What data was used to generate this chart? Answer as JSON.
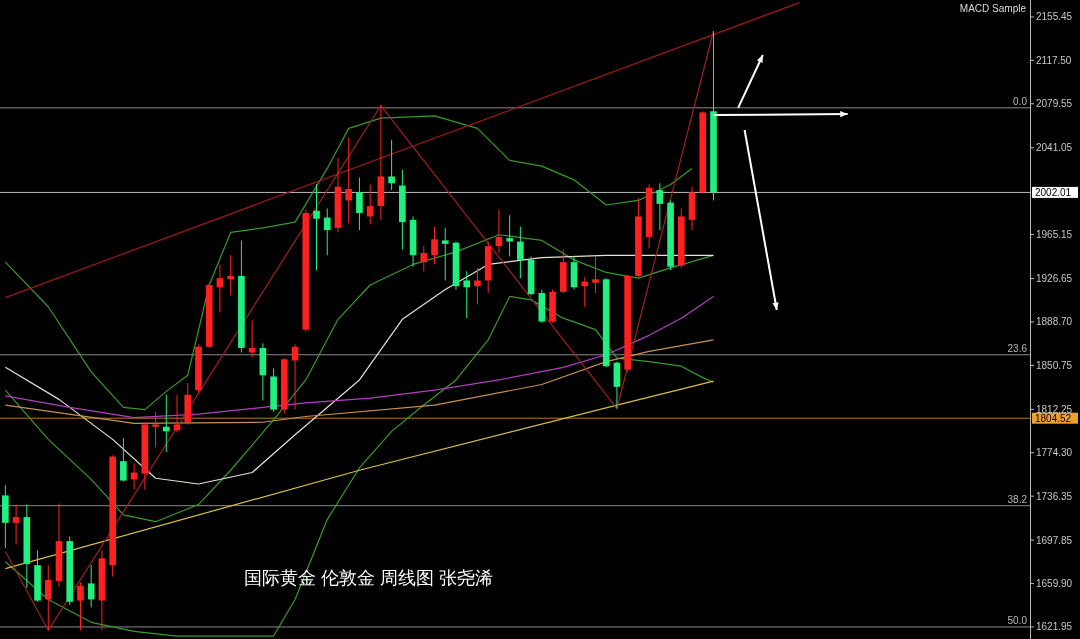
{
  "chart_data": {
    "type": "candlestick",
    "categories": [
      null,
      null,
      null,
      null,
      null,
      null,
      null,
      null,
      null,
      null,
      null,
      null,
      null,
      null,
      null,
      null,
      null,
      null,
      null,
      null,
      null,
      null,
      null,
      null,
      null,
      null,
      null,
      null,
      null,
      null,
      null,
      null,
      null,
      null,
      null,
      null,
      null,
      null,
      null,
      null,
      null,
      null,
      null,
      null,
      null,
      null,
      null,
      null,
      null,
      null,
      null,
      null,
      null,
      null,
      null,
      null,
      null,
      null,
      null,
      null,
      null,
      null,
      null,
      null,
      null,
      null,
      null,
      null,
      null,
      null,
      null,
      null,
      null,
      null,
      null,
      null,
      null,
      null,
      null,
      null,
      null,
      null,
      null,
      null,
      null,
      null,
      null,
      null,
      null,
      null,
      null,
      null,
      null,
      null,
      null,
      null
    ],
    "ohlc": [
      [
        1737,
        1746,
        1691,
        1713
      ],
      [
        1713,
        1729,
        1694,
        1718
      ],
      [
        1718,
        1729,
        1656,
        1677
      ],
      [
        1676,
        1689,
        1644,
        1645
      ],
      [
        1646,
        1676,
        1619,
        1663
      ],
      [
        1662,
        1730,
        1657,
        1697
      ],
      [
        1697,
        1701,
        1641,
        1644
      ],
      [
        1645,
        1661,
        1619,
        1658
      ],
      [
        1660,
        1676,
        1639,
        1646
      ],
      [
        1645,
        1689,
        1619,
        1682
      ],
      [
        1676,
        1772,
        1666,
        1771
      ],
      [
        1767,
        1787,
        1749,
        1750
      ],
      [
        1751,
        1765,
        1742,
        1757
      ],
      [
        1756,
        1801,
        1742,
        1799
      ],
      [
        1797,
        1810,
        1779,
        1799
      ],
      [
        1797,
        1825,
        1775,
        1793
      ],
      [
        1794,
        1825,
        1792,
        1799
      ],
      [
        1801,
        1835,
        1799,
        1825
      ],
      [
        1829,
        1869,
        1827,
        1867
      ],
      [
        1867,
        1923,
        1866,
        1921
      ],
      [
        1919,
        1939,
        1897,
        1927
      ],
      [
        1926,
        1947,
        1912,
        1929
      ],
      [
        1929,
        1960,
        1862,
        1866
      ],
      [
        1862,
        1890,
        1858,
        1866
      ],
      [
        1866,
        1870,
        1820,
        1842
      ],
      [
        1841,
        1848,
        1810,
        1812
      ],
      [
        1812,
        1857,
        1809,
        1856
      ],
      [
        1855,
        1869,
        1812,
        1867
      ],
      [
        1882,
        1987,
        1880,
        1984
      ],
      [
        1986,
        2009,
        1934,
        1979
      ],
      [
        1980,
        1988,
        1947,
        1969
      ],
      [
        1971,
        2032,
        1967,
        2007
      ],
      [
        1995,
        2050,
        1975,
        2005
      ],
      [
        2002,
        2015,
        1969,
        1984
      ],
      [
        1981,
        2009,
        1974,
        1990
      ],
      [
        1990,
        2078,
        1978,
        2016
      ],
      [
        2016,
        2048,
        2004,
        2010
      ],
      [
        2008,
        2022,
        1952,
        1976
      ],
      [
        1978,
        1981,
        1937,
        1947
      ],
      [
        1941,
        1955,
        1933,
        1949
      ],
      [
        1947,
        1972,
        1939,
        1961
      ],
      [
        1960,
        1971,
        1925,
        1957
      ],
      [
        1958,
        1959,
        1917,
        1920
      ],
      [
        1925,
        1933,
        1892,
        1919
      ],
      [
        1920,
        1936,
        1904,
        1925
      ],
      [
        1925,
        1959,
        1914,
        1955
      ],
      [
        1955,
        1987,
        1949,
        1963
      ],
      [
        1962,
        1982,
        1946,
        1959
      ],
      [
        1959,
        1972,
        1927,
        1943
      ],
      [
        1943,
        1946,
        1912,
        1913
      ],
      [
        1914,
        1917,
        1888,
        1889
      ],
      [
        1889,
        1917,
        1888,
        1915
      ],
      [
        1915,
        1952,
        1914,
        1941
      ],
      [
        1941,
        1946,
        1917,
        1919
      ],
      [
        1920,
        1928,
        1902,
        1924
      ],
      [
        1923,
        1946,
        1914,
        1926
      ],
      [
        1926,
        1927,
        1849,
        1850
      ],
      [
        1853,
        1854,
        1813,
        1832
      ],
      [
        1847,
        1930,
        1845,
        1929
      ],
      [
        1929,
        1997,
        1928,
        1981
      ],
      [
        1963,
        2009,
        1953,
        2006
      ],
      [
        2004,
        2010,
        1969,
        1992
      ],
      [
        1993,
        1995,
        1934,
        1937
      ],
      [
        1938,
        1988,
        1936,
        1981
      ],
      [
        1978,
        2007,
        1969,
        2002
      ],
      [
        2002,
        2073,
        2001,
        2072
      ],
      [
        2073,
        2143,
        1995,
        2002
      ],
      null,
      null,
      null,
      null,
      null,
      null,
      null,
      null,
      null,
      null,
      null,
      null,
      null,
      null,
      null,
      null,
      null,
      null,
      null,
      null,
      null,
      null,
      null,
      null,
      null,
      null,
      null,
      null,
      null
    ],
    "colors": [
      "#20f080",
      "#ff2020",
      "#20f080",
      "#20f080",
      "#ff2020",
      "#ff2020",
      "#20f080",
      "#ff2020",
      "#20f080",
      "#ff2020",
      "#ff2020",
      "#20f080",
      "#ff2020",
      "#ff2020",
      "#ff2020",
      "#20f080",
      "#ff2020",
      "#ff2020",
      "#ff2020",
      "#ff2020",
      "#ff2020",
      "#ff2020",
      "#20f080",
      "#ff2020",
      "#20f080",
      "#20f080",
      "#ff2020",
      "#ff2020",
      "#ff2020",
      "#20f080",
      "#20f080",
      "#ff2020",
      "#ff2020",
      "#20f080",
      "#ff2020",
      "#ff2020",
      "#20f080",
      "#20f080",
      "#20f080",
      "#ff2020",
      "#ff2020",
      "#20f080",
      "#20f080",
      "#20f080",
      "#ff2020",
      "#ff2020",
      "#ff2020",
      "#20f080",
      "#20f080",
      "#20f080",
      "#20f080",
      "#ff2020",
      "#ff2020",
      "#20f080",
      "#ff2020",
      "#ff2020",
      "#20f080",
      "#20f080",
      "#ff2020",
      "#ff2020",
      "#ff2020",
      "#20f080",
      "#20f080",
      "#ff2020",
      "#ff2020",
      "#ff2020",
      "#20f080",
      null,
      null,
      null,
      null,
      null,
      null,
      null,
      null,
      null,
      null,
      null,
      null,
      null,
      null,
      null,
      null,
      null,
      null,
      null,
      null,
      null,
      null,
      null,
      null,
      null,
      null,
      null,
      null,
      null
    ],
    "series": [
      {
        "type": "line",
        "color": "#3a9a2a",
        "values": [
          1941,
          null,
          null,
          null,
          1902,
          null,
          null,
          null,
          1845,
          null,
          null,
          1814,
          null,
          1812,
          null,
          1828,
          null,
          1842,
          null,
          1921,
          null,
          1967,
          null,
          null,
          1971,
          null,
          null,
          1976,
          null,
          null,
          2023,
          null,
          2058,
          null,
          null,
          2067,
          null,
          null,
          null,
          null,
          2069,
          null,
          null,
          null,
          2058,
          null,
          null,
          2030,
          null,
          null,
          2025,
          null,
          null,
          2013,
          null,
          null,
          1991,
          null,
          null,
          1995,
          null,
          null,
          2009,
          null,
          2023,
          null,
          null,
          null,
          null,
          null,
          null,
          null,
          null,
          null,
          null,
          null,
          null,
          null,
          null,
          null,
          null,
          null,
          null,
          null,
          null,
          null,
          null,
          null,
          null,
          null,
          null,
          null,
          null,
          null,
          null,
          null
        ]
      },
      {
        "type": "line",
        "color": "#3a9a2a",
        "values": [
          1829,
          null,
          null,
          null,
          1786,
          null,
          null,
          null,
          1751,
          null,
          null,
          1720,
          null,
          null,
          1714,
          null,
          null,
          null,
          1729,
          null,
          null,
          1759,
          null,
          null,
          null,
          1803,
          null,
          null,
          1838,
          null,
          null,
          1891,
          null,
          null,
          1921,
          null,
          null,
          null,
          1939,
          null,
          null,
          null,
          1950,
          null,
          null,
          null,
          1965,
          null,
          null,
          null,
          1960,
          null,
          null,
          1943,
          null,
          null,
          1932,
          null,
          null,
          1927,
          null,
          null,
          1936,
          null,
          null,
          null,
          1947,
          null,
          null,
          null,
          null,
          null,
          null,
          null,
          null,
          null,
          null,
          null,
          null,
          null,
          null,
          null,
          null,
          null,
          null,
          null,
          null,
          null,
          null,
          null,
          null,
          null,
          null,
          null,
          null,
          null
        ]
      },
      {
        "type": "line",
        "color": "#3a9a2a",
        "values": [
          1679,
          null,
          null,
          null,
          1646,
          null,
          null,
          null,
          1626,
          null,
          null,
          null,
          1618,
          null,
          null,
          null,
          1614,
          null,
          null,
          null,
          1614,
          null,
          null,
          null,
          null,
          1614,
          null,
          1646,
          null,
          null,
          1716,
          null,
          null,
          1761,
          null,
          null,
          1793,
          null,
          null,
          1816,
          null,
          null,
          1838,
          null,
          null,
          1873,
          null,
          1911,
          null,
          1908,
          null,
          null,
          1892,
          null,
          null,
          1882,
          null,
          1857,
          null,
          null,
          1854,
          null,
          null,
          1850,
          null,
          1840,
          1836,
          null,
          null,
          null,
          null,
          null,
          null,
          null,
          null,
          null,
          null,
          null,
          null,
          null,
          null,
          null,
          null,
          null,
          null,
          null,
          null,
          null,
          null,
          null,
          null,
          null,
          null,
          null,
          null,
          null
        ]
      },
      {
        "type": "line",
        "color": "#e8e0d0",
        "values": [
          1849,
          null,
          null,
          null,
          null,
          1821,
          null,
          null,
          null,
          null,
          1786,
          null,
          null,
          null,
          1752,
          null,
          null,
          null,
          1747,
          null,
          null,
          null,
          null,
          1757,
          null,
          null,
          null,
          1790,
          null,
          null,
          null,
          null,
          null,
          1838,
          null,
          null,
          null,
          1891,
          null,
          null,
          null,
          1917,
          null,
          null,
          null,
          1939,
          null,
          null,
          null,
          null,
          1945,
          null,
          null,
          null,
          null,
          null,
          1947,
          null,
          null,
          null,
          null,
          null,
          null,
          null,
          null,
          null,
          1947,
          null,
          null,
          null,
          null,
          null,
          null,
          null,
          null,
          null,
          null,
          null,
          null,
          null,
          null,
          null,
          null,
          null,
          null,
          null,
          null,
          null,
          null,
          null,
          null,
          null,
          null,
          null,
          null,
          null
        ]
      },
      {
        "type": "line",
        "color": "#b040c0",
        "values": [
          1824,
          null,
          null,
          null,
          null,
          null,
          1814,
          null,
          null,
          null,
          null,
          null,
          1805,
          null,
          null,
          null,
          null,
          null,
          1808,
          null,
          null,
          null,
          null,
          null,
          1814,
          null,
          null,
          null,
          1818,
          null,
          null,
          null,
          null,
          null,
          1822,
          null,
          null,
          null,
          null,
          null,
          1829,
          null,
          null,
          null,
          null,
          null,
          1838,
          null,
          null,
          null,
          null,
          null,
          1849,
          null,
          null,
          null,
          1860,
          null,
          null,
          null,
          1877,
          null,
          null,
          1892,
          null,
          null,
          1911,
          null,
          null,
          null,
          null,
          null,
          null,
          null,
          null,
          null,
          null,
          null,
          null,
          null,
          null,
          null,
          null,
          null,
          null,
          null,
          null,
          null,
          null,
          null,
          null,
          null,
          null,
          null,
          null,
          null
        ]
      },
      {
        "type": "line",
        "color": "#c89050",
        "values": [
          1816,
          null,
          null,
          null,
          null,
          null,
          null,
          null,
          null,
          null,
          null,
          null,
          1800,
          null,
          null,
          null,
          null,
          null,
          null,
          null,
          null,
          null,
          null,
          null,
          1801,
          null,
          null,
          null,
          1806,
          null,
          null,
          null,
          null,
          null,
          null,
          null,
          null,
          null,
          null,
          null,
          1816,
          null,
          null,
          null,
          null,
          null,
          null,
          null,
          null,
          null,
          1834,
          null,
          null,
          null,
          null,
          null,
          1854,
          null,
          null,
          null,
          1863,
          null,
          null,
          null,
          null,
          null,
          1873,
          null,
          null,
          null,
          null,
          null,
          null,
          null,
          null,
          null,
          null,
          null,
          null,
          null,
          null,
          null,
          null,
          null,
          null,
          null,
          null,
          null,
          null,
          null,
          null,
          null,
          null,
          null,
          null,
          null
        ]
      },
      {
        "type": "line",
        "color": "#d8c040",
        "values": [
          1673,
          null,
          null,
          null,
          null,
          null,
          null,
          null,
          null,
          null,
          null,
          null,
          null,
          null,
          null,
          null,
          null,
          null,
          null,
          null,
          null,
          null,
          null,
          null,
          null,
          null,
          null,
          null,
          null,
          null,
          null,
          null,
          null,
          1759,
          null,
          null,
          null,
          null,
          null,
          null,
          null,
          null,
          null,
          null,
          null,
          null,
          null,
          null,
          null,
          null,
          null,
          null,
          null,
          null,
          null,
          null,
          null,
          1816,
          null,
          null,
          null,
          null,
          null,
          null,
          null,
          null,
          1837,
          null,
          null,
          null,
          null,
          null,
          null,
          null,
          null,
          null,
          null,
          null,
          null,
          null,
          null,
          null,
          null,
          null,
          null,
          null,
          null,
          null,
          null,
          null,
          null,
          null,
          null,
          null,
          null,
          null
        ]
      },
      {
        "type": "line",
        "color": "#a01818",
        "values": [
          1910,
          null,
          null,
          null,
          null,
          null,
          null,
          null,
          null,
          null,
          null,
          null,
          null,
          null,
          null,
          null,
          null,
          null,
          null,
          null,
          null,
          null,
          null,
          null,
          null,
          null,
          null,
          null,
          null,
          null,
          null,
          null,
          null,
          null,
          null,
          null,
          null,
          null,
          null,
          null,
          null,
          null,
          null,
          null,
          null,
          null,
          null,
          null,
          null,
          null,
          null,
          null,
          null,
          null,
          null,
          null,
          null,
          null,
          null,
          null,
          null,
          null,
          null,
          null,
          null,
          null,
          null,
          null,
          null,
          null,
          null,
          null,
          null,
          null,
          2168,
          null,
          null,
          null,
          null,
          null,
          null,
          null,
          null,
          null,
          null,
          null,
          null,
          null,
          null,
          null,
          null,
          null,
          null,
          null,
          null,
          null
        ]
      },
      {
        "type": "line",
        "color": "#a02020",
        "values": [
          1688,
          null,
          null,
          null,
          1619,
          null,
          null,
          null,
          null,
          null,
          null,
          null,
          null,
          null,
          null,
          null,
          null,
          null,
          null,
          null,
          null,
          null,
          null,
          null,
          null,
          null,
          null,
          null,
          null,
          null,
          null,
          null,
          null,
          null,
          null,
          2078,
          null,
          null,
          null,
          null,
          null,
          null,
          null,
          null,
          null,
          null,
          null,
          null,
          null,
          null,
          null,
          null,
          null,
          null,
          null,
          null,
          null,
          1813,
          null,
          null,
          null,
          null,
          null,
          null,
          null,
          null,
          2143,
          null,
          null,
          null,
          null,
          null,
          null,
          null,
          null,
          null,
          null,
          null,
          null,
          null,
          null,
          null,
          null,
          null,
          null,
          null,
          null,
          null,
          null,
          null,
          null,
          null,
          null,
          null,
          null,
          null
        ]
      }
    ],
    "ylim": [
      1611.4,
      2170.3
    ],
    "yticks": [
      2155.45,
      {
        "value": 2117.5,
        "label": "2117.50"
      },
      2079.55,
      2041.05,
      1965.15,
      1926.65,
      {
        "value": 1888.7,
        "label": "1888.70"
      },
      1850.75,
      1812.25,
      {
        "value": 1774.3,
        "label": "1774.30"
      },
      1736.35,
      1697.85,
      {
        "value": 1659.9,
        "label": "1659.90"
      },
      1621.95
    ],
    "ref_lines": [
      {
        "axis": "y",
        "value": 2076,
        "color": "#b8b8b8"
      },
      {
        "axis": "y",
        "value": 2002.01,
        "label": "2002.01",
        "color": "#ffffff"
      },
      {
        "axis": "y",
        "value": 1860,
        "color": "#b8b8b8"
      },
      {
        "axis": "y",
        "value": 1804.52,
        "label": "1804.52",
        "color": "#f0a030"
      },
      {
        "axis": "y",
        "value": 1728,
        "color": "#b8b8b8"
      },
      {
        "axis": "y",
        "value": 1621.95,
        "color": "#b8b8b8"
      }
    ],
    "annotations": [
      "国际黄金 伦敦金 周线图 张尧浠",
      "MACD Sample",
      {
        "text": "0.0",
        "y": 2076
      },
      {
        "text": "23.6",
        "y": 1860
      },
      {
        "text": "38.2",
        "y": 1728
      },
      {
        "text": "50.0",
        "y": 1621.95
      }
    ],
    "tick_labels": "y",
    "grid": false
  }
}
